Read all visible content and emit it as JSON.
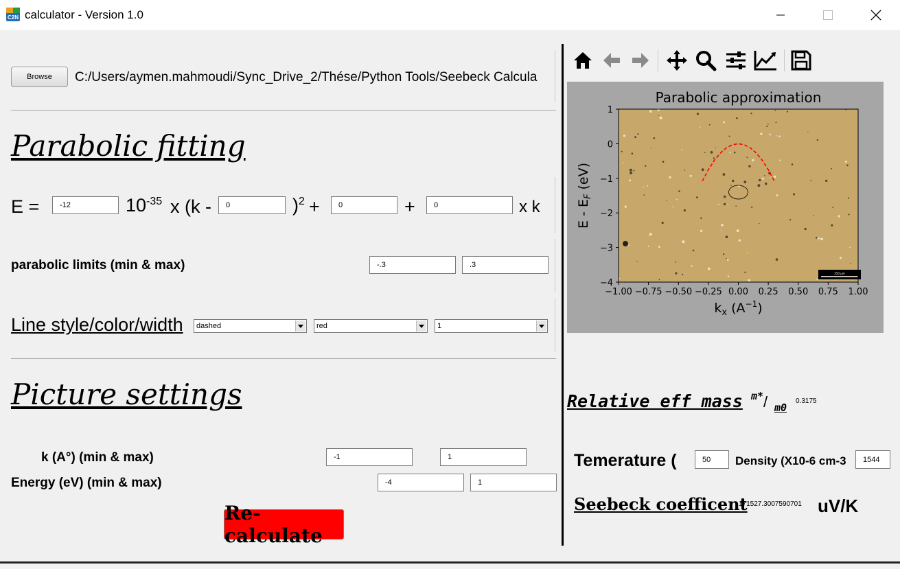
{
  "window": {
    "title": "calculator - Version 1.0",
    "app_icon_text": "C2N"
  },
  "file": {
    "browse_label": "Browse",
    "path": "C:/Users/aymen.mahmoudi/Sync_Drive_2/Thése/Python Tools/Seebeck Calcula"
  },
  "parabolic": {
    "heading": "Parabolic fitting",
    "eq_e": "E =",
    "coef_a": "-12",
    "eq_ten": "10",
    "eq_exp": "-35",
    "eq_xk": "x (k -",
    "k0": "0",
    "eq_sq_close": ")",
    "eq_sq_exp": "2",
    "eq_plus1": "+",
    "coef_c": "0",
    "eq_plus2": "+",
    "coef_b": "0",
    "eq_xk2": "x k",
    "limits_label": "parabolic limits (min & max)",
    "limit_min": "-.3",
    "limit_max": ".3",
    "line_label": "Line style/color/width",
    "line_style": "dashed",
    "line_color": "red",
    "line_width": "1"
  },
  "picture": {
    "heading": "Picture settings",
    "k_label": "k (A°)  (min & max)",
    "k_min": "-1",
    "k_max": "1",
    "energy_label": "Energy (eV)  (min & max)",
    "e_min": "-4",
    "e_max": "1"
  },
  "recalc_label": "Re-calculate",
  "toolbar": [
    "home-icon",
    "back-icon",
    "forward-icon",
    "pan-icon",
    "zoom-icon",
    "configure-icon",
    "edit-axes-icon",
    "save-icon"
  ],
  "chart_data": {
    "type": "line",
    "title": "Parabolic approximation",
    "xlabel": "k_x (A^-1)",
    "ylabel": "E - E_F (eV)",
    "xlim": [
      -1.0,
      1.0
    ],
    "ylim": [
      -4,
      1
    ],
    "xticks": [
      "−1.00",
      "−0.75",
      "−0.50",
      "−0.25",
      "0.00",
      "0.25",
      "0.50",
      "0.75",
      "1.00"
    ],
    "yticks": [
      "1",
      "0",
      "−1",
      "−2",
      "−3",
      "−4"
    ],
    "series": [
      {
        "style": "dashed",
        "color": "#ff0000",
        "x": [
          -0.3,
          -0.25,
          -0.2,
          -0.15,
          -0.1,
          -0.05,
          0.0,
          0.05,
          0.1,
          0.15,
          0.2,
          0.25,
          0.3
        ],
        "y": [
          -1.08,
          -0.75,
          -0.48,
          -0.27,
          -0.12,
          -0.03,
          0.0,
          -0.03,
          -0.12,
          -0.27,
          -0.48,
          -0.75,
          -1.08
        ]
      }
    ],
    "scale_bar_label": "250 μm",
    "background_color": "#c8a86a"
  },
  "results": {
    "eff_mass_label": "Relative eff mass",
    "eff_mass_unit_num": "m*",
    "eff_mass_unit_den": "m0",
    "eff_mass_value": "0.3175",
    "temp_label": "Temerature (",
    "temp_value": "50",
    "density_label": "Density (X10-6 cm-3",
    "density_value": "1544",
    "seebeck_label": "Seebeck coefficent",
    "seebeck_value": "171527.3007590701",
    "seebeck_unit": "uV/K"
  }
}
